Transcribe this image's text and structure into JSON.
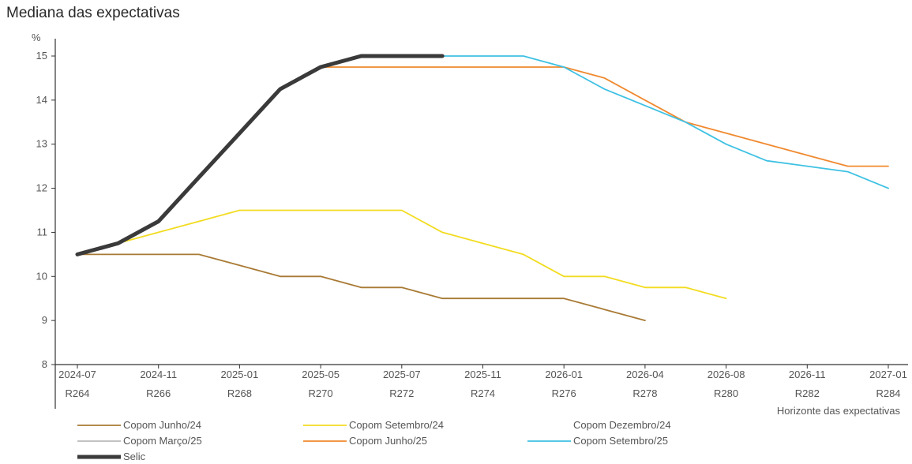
{
  "chart_data": {
    "type": "line",
    "title": "Mediana das expectativas",
    "ylabel": "%",
    "xlabel": "Horizonte das expectativas",
    "ylim": [
      8,
      15
    ],
    "yticks": [
      8,
      9,
      10,
      11,
      12,
      13,
      14,
      15
    ],
    "xlim": [
      0,
      20
    ],
    "date_ticks": [
      {
        "x": 0,
        "label": "2024-07"
      },
      {
        "x": 2,
        "label": "2024-11"
      },
      {
        "x": 4,
        "label": "2025-01"
      },
      {
        "x": 6,
        "label": "2025-05"
      },
      {
        "x": 8,
        "label": "2025-07"
      },
      {
        "x": 10,
        "label": "2025-11"
      },
      {
        "x": 12,
        "label": "2026-01"
      },
      {
        "x": 14,
        "label": "2026-04"
      },
      {
        "x": 16,
        "label": "2026-08"
      },
      {
        "x": 18,
        "label": "2026-11"
      },
      {
        "x": 20,
        "label": "2027-01"
      }
    ],
    "meeting_ticks": [
      {
        "x": 0,
        "label": "R264"
      },
      {
        "x": 2,
        "label": "R266"
      },
      {
        "x": 4,
        "label": "R268"
      },
      {
        "x": 6,
        "label": "R270"
      },
      {
        "x": 8,
        "label": "R272"
      },
      {
        "x": 10,
        "label": "R274"
      },
      {
        "x": 12,
        "label": "R276"
      },
      {
        "x": 14,
        "label": "R278"
      },
      {
        "x": 16,
        "label": "R280"
      },
      {
        "x": 18,
        "label": "R282"
      },
      {
        "x": 20,
        "label": "R284"
      }
    ],
    "series": [
      {
        "name": "Copom Junho/24",
        "color": "#a87a34",
        "points": [
          [
            0,
            10.5
          ],
          [
            1,
            10.5
          ],
          [
            2,
            10.5
          ],
          [
            3,
            10.5
          ],
          [
            4,
            10.25
          ],
          [
            5,
            10.0
          ],
          [
            6,
            10.0
          ],
          [
            7,
            9.75
          ],
          [
            8,
            9.75
          ],
          [
            9,
            9.5
          ],
          [
            10,
            9.5
          ],
          [
            11,
            9.5
          ],
          [
            12,
            9.5
          ],
          [
            13,
            9.25
          ],
          [
            14,
            9.0
          ]
        ]
      },
      {
        "name": "Copom Setembro/24",
        "color": "#f2dc21",
        "points": [
          [
            0,
            10.5
          ],
          [
            1,
            10.75
          ],
          [
            2,
            11.0
          ],
          [
            3,
            11.25
          ],
          [
            4,
            11.5
          ],
          [
            5,
            11.5
          ],
          [
            6,
            11.5
          ],
          [
            7,
            11.5
          ],
          [
            8,
            11.5
          ],
          [
            9,
            11.0
          ],
          [
            10,
            10.75
          ],
          [
            11,
            10.5
          ],
          [
            12,
            10.0
          ],
          [
            13,
            10.0
          ],
          [
            14,
            9.75
          ],
          [
            15,
            9.75
          ],
          [
            16,
            9.5
          ]
        ]
      },
      {
        "name": "Copom Dezembro/24",
        "color": "#ffffff",
        "points": []
      },
      {
        "name": "Copom Março/25",
        "color": "#b9b9b9",
        "points": []
      },
      {
        "name": "Copom Junho/25",
        "color": "#f0892f",
        "points": [
          [
            6,
            14.75
          ],
          [
            7,
            14.75
          ],
          [
            8,
            14.75
          ],
          [
            9,
            14.75
          ],
          [
            10,
            14.75
          ],
          [
            11,
            14.75
          ],
          [
            12,
            14.75
          ],
          [
            13,
            14.5
          ],
          [
            14,
            14.0
          ],
          [
            15,
            13.5
          ],
          [
            16,
            13.25
          ],
          [
            17,
            13.0
          ],
          [
            18,
            12.75
          ],
          [
            19,
            12.5
          ],
          [
            20,
            12.5
          ]
        ]
      },
      {
        "name": "Copom Setembro/25",
        "color": "#3ec1e3",
        "points": [
          [
            9,
            15.0
          ],
          [
            10,
            15.0
          ],
          [
            11,
            15.0
          ],
          [
            12,
            14.75
          ],
          [
            13,
            14.25
          ],
          [
            14,
            13.875
          ],
          [
            15,
            13.5
          ],
          [
            16,
            13.0
          ],
          [
            17,
            12.625
          ],
          [
            18,
            12.5
          ],
          [
            19,
            12.375
          ],
          [
            20,
            12.0
          ]
        ]
      },
      {
        "name": "Selic",
        "color": "#3a3a3a",
        "points": [
          [
            0,
            10.5
          ],
          [
            1,
            10.75
          ],
          [
            2,
            11.25
          ],
          [
            3,
            12.25
          ],
          [
            4,
            13.25
          ],
          [
            5,
            14.25
          ],
          [
            6,
            14.75
          ],
          [
            7,
            15.0
          ],
          [
            8,
            15.0
          ],
          [
            9,
            15.0
          ]
        ]
      }
    ],
    "legend": [
      {
        "label": "Copom Junho/24",
        "color": "#a87a34"
      },
      {
        "label": "Copom Setembro/24",
        "color": "#f2dc21"
      },
      {
        "label": "Copom Dezembro/24",
        "color": "#ffffff"
      },
      {
        "label": "Copom Março/25",
        "color": "#b9b9b9"
      },
      {
        "label": "Copom Junho/25",
        "color": "#f0892f"
      },
      {
        "label": "Copom Setembro/25",
        "color": "#3ec1e3"
      },
      {
        "label": "Selic",
        "color": "#3a3a3a"
      }
    ],
    "grid": false,
    "legend_placement": "bottom"
  }
}
